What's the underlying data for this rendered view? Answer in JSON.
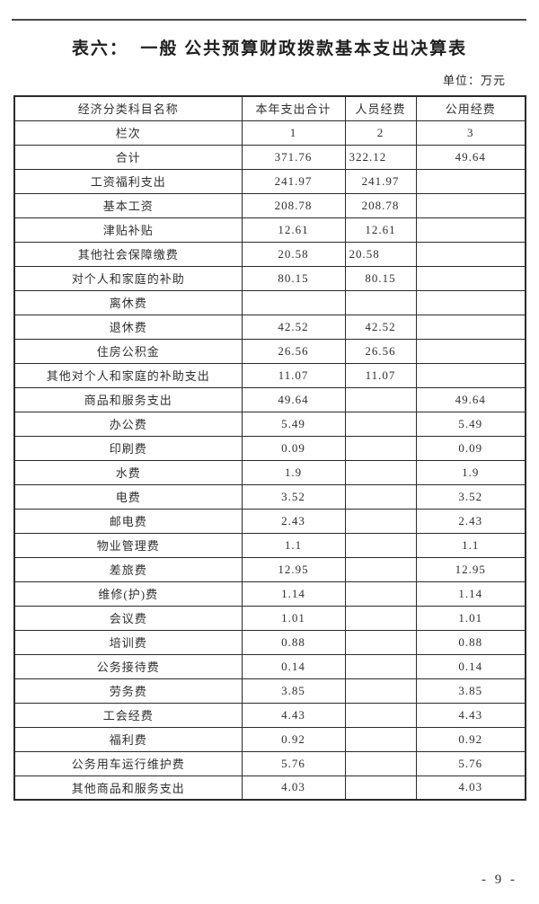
{
  "title": "表六：  一般 公共预算财政拨款基本支出决算表",
  "unit_label": "单位：万元",
  "page_number": "- 9 -",
  "colors": {
    "text": "#2f2f2f",
    "table_border": "#2b2b2b",
    "top_rule": "#4a4a4a",
    "background": "#ffffff"
  },
  "table": {
    "columns": [
      "经济分类科目名称",
      "本年支出合计",
      "人员经费",
      "公用经费"
    ],
    "rows": [
      [
        "栏次",
        "1",
        "2",
        "3"
      ],
      [
        "合计",
        "371.76",
        "322.12",
        "49.64"
      ],
      [
        "工资福利支出",
        "241.97",
        "241.97",
        ""
      ],
      [
        "基本工资",
        "208.78",
        "208.78",
        ""
      ],
      [
        "津贴补贴",
        "12.61",
        "12.61",
        ""
      ],
      [
        "其他社会保障缴费",
        "20.58",
        "20.58",
        ""
      ],
      [
        "对个人和家庭的补助",
        "80.15",
        "80.15",
        ""
      ],
      [
        "离休费",
        "",
        "",
        ""
      ],
      [
        "退休费",
        "42.52",
        "42.52",
        ""
      ],
      [
        "住房公积金",
        "26.56",
        "26.56",
        ""
      ],
      [
        "其他对个人和家庭的补助支出",
        "11.07",
        "11.07",
        ""
      ],
      [
        "商品和服务支出",
        "49.64",
        "",
        "49.64"
      ],
      [
        "办公费",
        "5.49",
        "",
        "5.49"
      ],
      [
        "印刷费",
        "0.09",
        "",
        "0.09"
      ],
      [
        "水费",
        "1.9",
        "",
        "1.9"
      ],
      [
        "电费",
        "3.52",
        "",
        "3.52"
      ],
      [
        "邮电费",
        "2.43",
        "",
        "2.43"
      ],
      [
        "物业管理费",
        "1.1",
        "",
        "1.1"
      ],
      [
        "差旅费",
        "12.95",
        "",
        "12.95"
      ],
      [
        "维修(护)费",
        "1.14",
        "",
        "1.14"
      ],
      [
        "会议费",
        "1.01",
        "",
        "1.01"
      ],
      [
        "培训费",
        "0.88",
        "",
        "0.88"
      ],
      [
        "公务接待费",
        "0.14",
        "",
        "0.14"
      ],
      [
        "劳务费",
        "3.85",
        "",
        "3.85"
      ],
      [
        "工会经费",
        "4.43",
        "",
        "4.43"
      ],
      [
        "福利费",
        "0.92",
        "",
        "0.92"
      ],
      [
        "公务用车运行维护费",
        "5.76",
        "",
        "5.76"
      ],
      [
        "其他商品和服务支出",
        "4.03",
        "",
        "4.03"
      ]
    ],
    "left_aligned_cells": [
      [
        1,
        2
      ],
      [
        5,
        2
      ]
    ]
  }
}
